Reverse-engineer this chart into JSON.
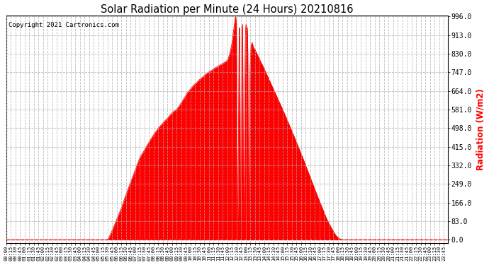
{
  "title": "Solar Radiation per Minute (24 Hours) 20210816",
  "ylabel": "Radiation (W/m2)",
  "copyright": "Copyright 2021 Cartronics.com",
  "bg_color": "#ffffff",
  "plot_bg_color": "#ffffff",
  "grid_color": "#aaaaaa",
  "fill_color": "#ff0000",
  "line_color": "#ff0000",
  "dashed_line_color": "#ff0000",
  "ylabel_color": "#ff0000",
  "title_color": "#000000",
  "yticks": [
    0.0,
    83.0,
    166.0,
    249.0,
    332.0,
    415.0,
    498.0,
    581.0,
    664.0,
    747.0,
    830.0,
    913.0,
    996.0
  ],
  "ymax": 996.0,
  "ymin": 0.0,
  "curve": [
    [
      0,
      0
    ],
    [
      329,
      0
    ],
    [
      335,
      10
    ],
    [
      345,
      40
    ],
    [
      360,
      90
    ],
    [
      375,
      140
    ],
    [
      390,
      200
    ],
    [
      405,
      255
    ],
    [
      420,
      310
    ],
    [
      435,
      365
    ],
    [
      450,
      400
    ],
    [
      465,
      435
    ],
    [
      480,
      468
    ],
    [
      495,
      497
    ],
    [
      510,
      520
    ],
    [
      525,
      542
    ],
    [
      535,
      558
    ],
    [
      540,
      565
    ],
    [
      545,
      572
    ],
    [
      550,
      576
    ],
    [
      555,
      582
    ],
    [
      560,
      590
    ],
    [
      565,
      600
    ],
    [
      570,
      610
    ],
    [
      575,
      622
    ],
    [
      580,
      632
    ],
    [
      585,
      644
    ],
    [
      590,
      656
    ],
    [
      595,
      664
    ],
    [
      600,
      672
    ],
    [
      605,
      680
    ],
    [
      610,
      688
    ],
    [
      615,
      695
    ],
    [
      620,
      700
    ],
    [
      625,
      708
    ],
    [
      630,
      715
    ],
    [
      635,
      720
    ],
    [
      640,
      726
    ],
    [
      645,
      732
    ],
    [
      650,
      738
    ],
    [
      655,
      744
    ],
    [
      660,
      748
    ],
    [
      665,
      752
    ],
    [
      670,
      756
    ],
    [
      675,
      762
    ],
    [
      680,
      766
    ],
    [
      685,
      770
    ],
    [
      690,
      774
    ],
    [
      695,
      778
    ],
    [
      700,
      782
    ],
    [
      705,
      786
    ],
    [
      710,
      790
    ],
    [
      715,
      795
    ],
    [
      720,
      800
    ],
    [
      723,
      810
    ],
    [
      726,
      820
    ],
    [
      729,
      835
    ],
    [
      732,
      855
    ],
    [
      735,
      875
    ],
    [
      737,
      895
    ],
    [
      739,
      915
    ],
    [
      741,
      935
    ],
    [
      743,
      960
    ],
    [
      745,
      980
    ],
    [
      746,
      990
    ],
    [
      747,
      996
    ],
    [
      748,
      990
    ],
    [
      749,
      970
    ],
    [
      750,
      900
    ],
    [
      751,
      700
    ],
    [
      752,
      400
    ],
    [
      753,
      166
    ],
    [
      754,
      80
    ],
    [
      755,
      166
    ],
    [
      756,
      400
    ],
    [
      757,
      600
    ],
    [
      758,
      800
    ],
    [
      759,
      920
    ],
    [
      760,
      946
    ],
    [
      761,
      800
    ],
    [
      762,
      500
    ],
    [
      763,
      166
    ],
    [
      764,
      80
    ],
    [
      765,
      166
    ],
    [
      766,
      400
    ],
    [
      767,
      700
    ],
    [
      768,
      900
    ],
    [
      769,
      946
    ],
    [
      770,
      960
    ],
    [
      771,
      700
    ],
    [
      772,
      400
    ],
    [
      773,
      166
    ],
    [
      774,
      80
    ],
    [
      775,
      166
    ],
    [
      776,
      400
    ],
    [
      777,
      650
    ],
    [
      778,
      800
    ],
    [
      779,
      900
    ],
    [
      780,
      946
    ],
    [
      781,
      960
    ],
    [
      782,
      960
    ],
    [
      783,
      946
    ],
    [
      784,
      930
    ],
    [
      785,
      946
    ],
    [
      786,
      920
    ],
    [
      787,
      830
    ],
    [
      788,
      500
    ],
    [
      789,
      166
    ],
    [
      790,
      83
    ],
    [
      791,
      166
    ],
    [
      792,
      400
    ],
    [
      793,
      640
    ],
    [
      794,
      750
    ],
    [
      795,
      800
    ],
    [
      796,
      830
    ],
    [
      797,
      860
    ],
    [
      798,
      870
    ],
    [
      799,
      870
    ],
    [
      800,
      875
    ],
    [
      801,
      880
    ],
    [
      802,
      875
    ],
    [
      803,
      870
    ],
    [
      804,
      865
    ],
    [
      805,
      858
    ],
    [
      810,
      848
    ],
    [
      815,
      835
    ],
    [
      820,
      820
    ],
    [
      825,
      805
    ],
    [
      830,
      790
    ],
    [
      835,
      778
    ],
    [
      840,
      763
    ],
    [
      845,
      748
    ],
    [
      850,
      733
    ],
    [
      855,
      718
    ],
    [
      860,
      703
    ],
    [
      865,
      688
    ],
    [
      870,
      673
    ],
    [
      875,
      658
    ],
    [
      880,
      643
    ],
    [
      885,
      628
    ],
    [
      890,
      613
    ],
    [
      895,
      598
    ],
    [
      900,
      582
    ],
    [
      905,
      567
    ],
    [
      910,
      550
    ],
    [
      915,
      534
    ],
    [
      920,
      518
    ],
    [
      925,
      502
    ],
    [
      930,
      486
    ],
    [
      935,
      470
    ],
    [
      940,
      453
    ],
    [
      945,
      436
    ],
    [
      950,
      419
    ],
    [
      955,
      402
    ],
    [
      960,
      385
    ],
    [
      965,
      368
    ],
    [
      970,
      351
    ],
    [
      975,
      332
    ],
    [
      980,
      315
    ],
    [
      985,
      297
    ],
    [
      990,
      279
    ],
    [
      995,
      261
    ],
    [
      1000,
      243
    ],
    [
      1005,
      226
    ],
    [
      1010,
      208
    ],
    [
      1015,
      190
    ],
    [
      1020,
      173
    ],
    [
      1025,
      156
    ],
    [
      1030,
      139
    ],
    [
      1035,
      122
    ],
    [
      1040,
      105
    ],
    [
      1045,
      90
    ],
    [
      1050,
      76
    ],
    [
      1055,
      63
    ],
    [
      1060,
      50
    ],
    [
      1065,
      38
    ],
    [
      1070,
      27
    ],
    [
      1075,
      17
    ],
    [
      1080,
      10
    ],
    [
      1085,
      5
    ],
    [
      1090,
      2
    ],
    [
      1095,
      0
    ],
    [
      1096,
      0
    ],
    [
      1100,
      0
    ],
    [
      1110,
      0
    ],
    [
      1120,
      0
    ],
    [
      1130,
      0
    ],
    [
      1140,
      0
    ],
    [
      1141,
      0
    ],
    [
      1439,
      0
    ]
  ]
}
